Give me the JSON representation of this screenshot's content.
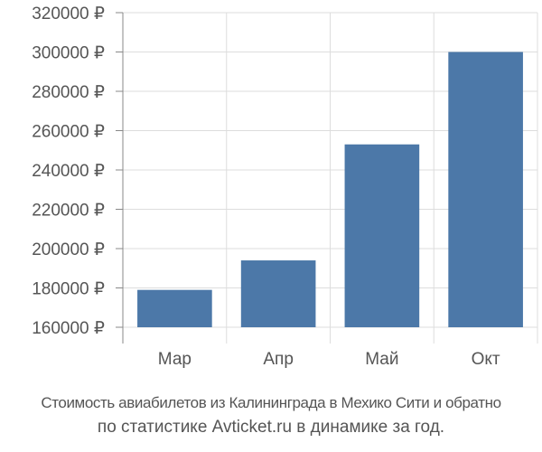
{
  "chart_data": {
    "type": "bar",
    "categories": [
      "Мар",
      "Апр",
      "Май",
      "Окт"
    ],
    "values": [
      179000,
      194000,
      253000,
      300000
    ],
    "y_ticks": [
      {
        "value": 160000,
        "label": "160000 ₽"
      },
      {
        "value": 180000,
        "label": "180000 ₽"
      },
      {
        "value": 200000,
        "label": "200000 ₽"
      },
      {
        "value": 220000,
        "label": "220000 ₽"
      },
      {
        "value": 240000,
        "label": "240000 ₽"
      },
      {
        "value": 260000,
        "label": "260000 ₽"
      },
      {
        "value": 280000,
        "label": "280000 ₽"
      },
      {
        "value": 300000,
        "label": "300000 ₽"
      },
      {
        "value": 320000,
        "label": "320000 ₽"
      }
    ],
    "ylim": [
      160000,
      320000
    ],
    "title": "",
    "xlabel": "",
    "ylabel": "",
    "grid": true,
    "bar_color": "#4c78a8",
    "grid_color": "#dddddd"
  },
  "caption": {
    "line1": "Стоимость авиабилетов из Калининграда в Мехико Сити и обратно",
    "line2": "по статистике Avticket.ru в динамике за год."
  }
}
